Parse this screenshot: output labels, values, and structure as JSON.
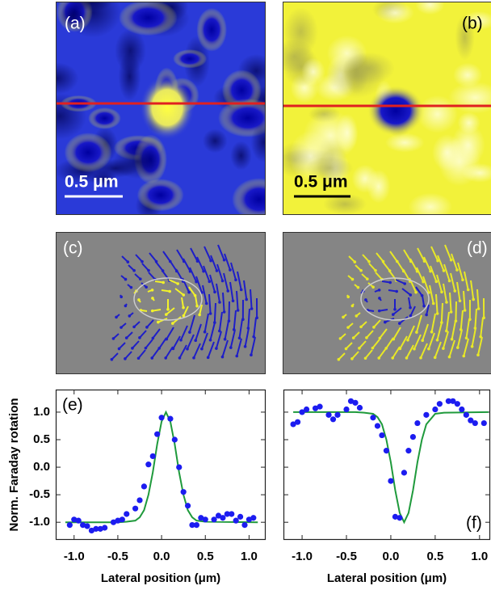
{
  "panels": [
    {
      "label": "(a)",
      "scale_bar": "0.5 μm"
    },
    {
      "label": "(b)",
      "scale_bar": "0.5 μm"
    },
    {
      "label": "(c)"
    },
    {
      "label": "(d)"
    }
  ],
  "chart_data": [
    {
      "type": "scatter",
      "annotation": "(e)",
      "ylabel": "Norm. Faraday rotation",
      "xlabel": "Lateral position (μm)",
      "xlim": [
        -1.21,
        1.19
      ],
      "ylim": [
        -1.32,
        1.41
      ],
      "grid": false,
      "show_ytick_labels": true,
      "xticks": [
        {
          "value": -1,
          "label": "-1.0"
        },
        {
          "value": -0.5,
          "label": "-0.5"
        },
        {
          "value": 0,
          "label": "0.0"
        },
        {
          "value": 0.5,
          "label": "0.5"
        },
        {
          "value": 1,
          "label": "1.0"
        }
      ],
      "yticks": [
        {
          "value": -1,
          "label": "-1.0"
        },
        {
          "value": -0.5,
          "label": "-0.5"
        },
        {
          "value": 0,
          "label": "0.0"
        },
        {
          "value": 0.5,
          "label": "0.5"
        },
        {
          "value": 1,
          "label": "1.0"
        }
      ],
      "color": "#1c1cf0",
      "x": [
        -1.05,
        -1.0,
        -0.95,
        -0.9,
        -0.85,
        -0.8,
        -0.75,
        -0.7,
        -0.65,
        -0.55,
        -0.5,
        -0.45,
        -0.4,
        -0.3,
        -0.25,
        -0.2,
        -0.15,
        -0.1,
        -0.05,
        0.0,
        0.1,
        0.15,
        0.2,
        0.25,
        0.3,
        0.35,
        0.4,
        0.45,
        0.5,
        0.6,
        0.65,
        0.7,
        0.75,
        0.8,
        0.85,
        0.9,
        0.95,
        1.0,
        1.05
      ],
      "values": [
        -1.05,
        -0.95,
        -0.97,
        -1.05,
        -1.07,
        -1.15,
        -1.12,
        -1.12,
        -1.1,
        -1.0,
        -0.97,
        -0.95,
        -0.85,
        -0.75,
        -0.6,
        -0.35,
        0.05,
        0.2,
        0.6,
        0.9,
        0.88,
        0.5,
        0.0,
        -0.45,
        -0.7,
        -1.05,
        -1.05,
        -0.92,
        -0.95,
        -0.95,
        -0.88,
        -0.92,
        -0.85,
        -0.85,
        -0.97,
        -0.9,
        -1.05,
        -0.95,
        -0.92
      ],
      "fit": {
        "color": "#1f9a3c",
        "x": [
          -1.1,
          -0.5,
          -0.4,
          -0.3,
          -0.25,
          -0.2,
          -0.15,
          -0.1,
          -0.05,
          0.0,
          0.05,
          0.1,
          0.15,
          0.2,
          0.25,
          0.3,
          0.35,
          0.4,
          0.5,
          1.1
        ],
        "values": [
          -1,
          -1,
          -0.99,
          -0.97,
          -0.91,
          -0.78,
          -0.5,
          -0.09,
          0.42,
          0.83,
          1.0,
          0.83,
          0.42,
          -0.09,
          -0.5,
          -0.78,
          -0.91,
          -0.97,
          -0.99,
          -1
        ]
      }
    },
    {
      "type": "scatter",
      "annotation": "(f)",
      "xlabel": "Lateral position (μm)",
      "xlim": [
        -1.21,
        1.12
      ],
      "ylim": [
        -1.32,
        1.41
      ],
      "grid": false,
      "show_ytick_labels": false,
      "xticks": [
        {
          "value": -1,
          "label": "-1.0"
        },
        {
          "value": -0.5,
          "label": "-0.5"
        },
        {
          "value": 0,
          "label": "0.0"
        },
        {
          "value": 0.5,
          "label": "0.5"
        },
        {
          "value": 1,
          "label": "1.0"
        }
      ],
      "yticks": [
        -1,
        -0.5,
        0,
        0.5,
        1
      ],
      "color": "#1c1cf0",
      "x": [
        -1.1,
        -1.05,
        -1.0,
        -0.95,
        -0.85,
        -0.8,
        -0.7,
        -0.65,
        -0.6,
        -0.5,
        -0.45,
        -0.4,
        -0.35,
        -0.2,
        -0.15,
        -0.1,
        -0.05,
        0.0,
        0.05,
        0.1,
        0.15,
        0.2,
        0.25,
        0.3,
        0.4,
        0.5,
        0.55,
        0.65,
        0.7,
        0.75,
        0.8,
        0.85,
        0.9,
        0.95,
        1.05
      ],
      "values": [
        0.78,
        0.82,
        1.0,
        1.05,
        1.07,
        1.1,
        0.95,
        0.87,
        0.95,
        1.05,
        1.2,
        1.17,
        1.08,
        0.9,
        0.75,
        0.58,
        0.3,
        -0.25,
        -0.9,
        -0.92,
        -0.1,
        0.3,
        0.55,
        0.8,
        0.95,
        1.05,
        1.15,
        1.2,
        1.2,
        1.15,
        1.05,
        0.95,
        0.85,
        0.8,
        0.8
      ],
      "fit": {
        "color": "#1f9a3c",
        "x": [
          -1.1,
          -0.4,
          -0.3,
          -0.2,
          -0.15,
          -0.1,
          -0.05,
          0.0,
          0.05,
          0.1,
          0.15,
          0.2,
          0.25,
          0.3,
          0.35,
          0.4,
          0.5,
          0.6,
          1.1
        ],
        "values": [
          1,
          1,
          0.99,
          0.97,
          0.91,
          0.78,
          0.5,
          0.09,
          -0.42,
          -0.83,
          -1.0,
          -0.83,
          -0.42,
          0.09,
          0.5,
          0.78,
          0.97,
          0.99,
          1
        ]
      }
    }
  ]
}
